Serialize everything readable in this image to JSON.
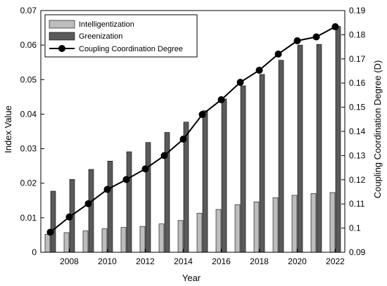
{
  "chart_data": {
    "type": "bar",
    "x": [
      2007,
      2008,
      2009,
      2010,
      2011,
      2012,
      2013,
      2014,
      2015,
      2016,
      2017,
      2018,
      2019,
      2020,
      2021,
      2022
    ],
    "xlabel": "Year",
    "xticks": [
      2008,
      2010,
      2012,
      2014,
      2016,
      2018,
      2020,
      2022
    ],
    "xlim": [
      2006.5,
      2022.5
    ],
    "ylabel_left": "Index Value",
    "ylim_left": [
      0,
      0.07
    ],
    "yticks_left": [
      "0",
      "0.01",
      "0.02",
      "0.03",
      "0.04",
      "0.05",
      "0.06",
      "0.07"
    ],
    "ylabel_right": "Coupling Coordination Degree (D)",
    "ylim_right": [
      0.09,
      0.19
    ],
    "yticks_right": [
      "0.09",
      "0.1",
      "0.11",
      "0.12",
      "0.13",
      "0.14",
      "0.15",
      "0.16",
      "0.17",
      "0.18",
      "0.19"
    ],
    "legend_position": "top-left",
    "grid": false,
    "series": [
      {
        "name": "Intelligentization",
        "kind": "bar",
        "axis": "left",
        "color": "#bdbdbd",
        "values": [
          0.0052,
          0.0057,
          0.0062,
          0.0068,
          0.0072,
          0.0075,
          0.0082,
          0.0092,
          0.0113,
          0.0124,
          0.0138,
          0.0146,
          0.0158,
          0.0165,
          0.017,
          0.0173
        ]
      },
      {
        "name": "Greenization",
        "kind": "bar",
        "axis": "left",
        "color": "#5a5a5a",
        "values": [
          0.0177,
          0.0211,
          0.024,
          0.0264,
          0.0291,
          0.0318,
          0.0347,
          0.0377,
          0.041,
          0.0444,
          0.0482,
          0.0515,
          0.0556,
          0.06,
          0.0602,
          0.0654
        ]
      },
      {
        "name": "Coupling Coordination Degree",
        "kind": "line",
        "axis": "right",
        "color": "#000000",
        "values": [
          0.0983,
          0.1046,
          0.1101,
          0.116,
          0.1201,
          0.1245,
          0.13,
          0.1368,
          0.147,
          0.1531,
          0.1603,
          0.1653,
          0.172,
          0.1775,
          0.1791,
          0.1833
        ]
      }
    ]
  }
}
